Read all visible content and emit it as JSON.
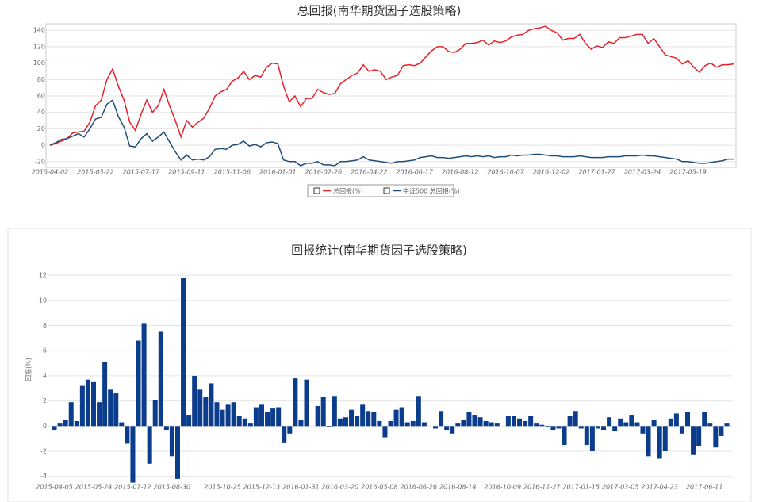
{
  "chart_data": [
    {
      "type": "line",
      "title": "总回报(南华期货因子选股策略)",
      "categories": [
        "2015-04-02",
        null,
        null,
        null,
        null,
        null,
        null,
        null,
        "2015-05-22",
        null,
        null,
        null,
        null,
        null,
        null,
        null,
        "2015-07-17",
        null,
        null,
        null,
        null,
        null,
        null,
        null,
        "2015-09-11",
        null,
        null,
        null,
        null,
        null,
        null,
        null,
        "2015-11-06",
        null,
        null,
        null,
        null,
        null,
        null,
        null,
        "2016-01-01",
        null,
        null,
        null,
        null,
        null,
        null,
        null,
        "2016-02-26",
        null,
        null,
        null,
        null,
        null,
        null,
        null,
        "2016-04-22",
        null,
        null,
        null,
        null,
        null,
        null,
        null,
        "2016-06-17",
        null,
        null,
        null,
        null,
        null,
        null,
        null,
        "2016-08-12",
        null,
        null,
        null,
        null,
        null,
        null,
        null,
        "2016-10-07",
        null,
        null,
        null,
        null,
        null,
        null,
        null,
        "2016-12-02",
        null,
        null,
        null,
        null,
        null,
        null,
        null,
        "2017-01-27",
        null,
        null,
        null,
        null,
        null,
        null,
        null,
        "2017-03-24",
        null,
        null,
        null,
        null,
        null,
        null,
        null,
        "2017-05-19",
        null,
        null,
        null,
        null,
        null,
        null,
        null,
        null
      ],
      "series": [
        {
          "name": "总回报(%)",
          "color": "#e8202a",
          "values": [
            0,
            2,
            5,
            8,
            15,
            16,
            17,
            28,
            48,
            55,
            80,
            93,
            72,
            55,
            28,
            18,
            38,
            55,
            40,
            48,
            68,
            48,
            30,
            10,
            30,
            22,
            28,
            33,
            45,
            60,
            65,
            68,
            78,
            82,
            90,
            80,
            85,
            83,
            95,
            100,
            99,
            72,
            53,
            60,
            47,
            57,
            57,
            68,
            64,
            62,
            63,
            75,
            80,
            85,
            88,
            98,
            90,
            92,
            90,
            80,
            83,
            85,
            97,
            98,
            97,
            100,
            108,
            115,
            120,
            120,
            114,
            113,
            117,
            124,
            124,
            125,
            128,
            122,
            127,
            125,
            127,
            132,
            134,
            135,
            140,
            142,
            143,
            145,
            140,
            137,
            128,
            130,
            130,
            135,
            124,
            117,
            121,
            119,
            126,
            124,
            131,
            131,
            133,
            135,
            135,
            124,
            130,
            120,
            110,
            108,
            106,
            99,
            103,
            95,
            89,
            97,
            100,
            95,
            98,
            98,
            99
          ]
        },
        {
          "name": "中证500 总回报(%)",
          "color": "#1f4e79",
          "values": [
            0,
            3,
            7,
            8,
            11,
            14,
            10,
            20,
            32,
            34,
            50,
            55,
            35,
            22,
            -1,
            -2,
            8,
            14,
            5,
            10,
            16,
            4,
            -8,
            -18,
            -12,
            -18,
            -17,
            -18,
            -14,
            -5,
            -4,
            -5,
            0,
            1,
            5,
            -1,
            1,
            -2,
            3,
            4,
            2,
            -18,
            -20,
            -20,
            -25,
            -22,
            -22,
            -20,
            -24,
            -24,
            -25,
            -20,
            -20,
            -19,
            -18,
            -14,
            -18,
            -19,
            -20,
            -21,
            -22,
            -20,
            -20,
            -19,
            -18,
            -15,
            -14,
            -13,
            -15,
            -15,
            -16,
            -15,
            -14,
            -13,
            -14,
            -13,
            -14,
            -13,
            -15,
            -14,
            -14,
            -12,
            -13,
            -12,
            -12,
            -11,
            -11,
            -12,
            -13,
            -13,
            -14,
            -14,
            -14,
            -13,
            -14,
            -15,
            -15,
            -15,
            -14,
            -14,
            -14,
            -13,
            -13,
            -13,
            -12,
            -13,
            -13,
            -14,
            -15,
            -16,
            -17,
            -20,
            -20,
            -21,
            -22,
            -22,
            -21,
            -20,
            -19,
            -17,
            -17
          ]
        }
      ],
      "ylim": [
        -26,
        146
      ],
      "yticks": [
        -20,
        0,
        20,
        40,
        60,
        80,
        100,
        120,
        140
      ],
      "grid": true,
      "legend": "bottom"
    },
    {
      "type": "bar",
      "title": "回报统计(南华期货因子选股策略)",
      "y_label": "回报(%)",
      "color": "#0b3d8c",
      "categories": [
        "2015-04-05",
        null,
        null,
        null,
        null,
        null,
        null,
        "2015-05-24",
        null,
        null,
        null,
        null,
        null,
        null,
        "2015-07-12",
        null,
        null,
        null,
        null,
        null,
        null,
        "2015-08-30",
        null,
        null,
        null,
        null,
        null,
        null,
        null,
        null,
        "2015-10-25",
        null,
        null,
        null,
        null,
        null,
        null,
        "2015-12-13",
        null,
        null,
        null,
        null,
        null,
        null,
        "2016-01-31",
        null,
        null,
        null,
        null,
        null,
        null,
        "2016-03-20",
        null,
        null,
        null,
        null,
        null,
        null,
        "2016-05-08",
        null,
        null,
        null,
        null,
        null,
        null,
        "2016-06-26",
        null,
        null,
        null,
        null,
        null,
        null,
        "2016-08-14",
        null,
        null,
        null,
        null,
        null,
        null,
        null,
        "2016-10-09",
        null,
        null,
        null,
        null,
        null,
        null,
        "2016-11-27",
        null,
        null,
        null,
        null,
        null,
        null,
        "2017-01-15",
        null,
        null,
        null,
        null,
        null,
        null,
        "2017-03-05",
        null,
        null,
        null,
        null,
        null,
        null,
        "2017-04-23",
        null,
        null,
        null,
        null,
        null,
        null,
        null,
        "2017-06-11",
        null,
        null,
        null,
        null
      ],
      "values": [
        -0.3,
        0.2,
        0.5,
        1.9,
        0.4,
        3.2,
        3.7,
        3.5,
        1.9,
        5.1,
        2.9,
        2.6,
        0.3,
        -1.4,
        -4.5,
        6.8,
        8.2,
        -3.0,
        2.1,
        7.5,
        -0.3,
        -2.4,
        -4.2,
        11.8,
        0.9,
        4.0,
        2.9,
        2.3,
        3.4,
        1.9,
        1.3,
        1.7,
        1.9,
        0.8,
        0.6,
        0.2,
        1.5,
        1.7,
        1.1,
        1.4,
        1.5,
        -1.3,
        -0.6,
        3.8,
        0.5,
        3.7,
        0,
        1.6,
        2.3,
        -0.1,
        2.4,
        0.6,
        0.7,
        1.3,
        0.8,
        1.7,
        1.2,
        1.1,
        0.4,
        -0.9,
        0.4,
        1.3,
        1.5,
        0.3,
        0.4,
        2.4,
        0.3,
        0,
        -0.2,
        1.2,
        -0.3,
        -0.6,
        0.2,
        0.5,
        1.1,
        0.9,
        0.7,
        0.4,
        0.3,
        0.2,
        0,
        0.8,
        0.8,
        0.6,
        0.4,
        0.8,
        0.2,
        0.1,
        -0.1,
        -0.3,
        -0.2,
        -1.5,
        0.8,
        1.2,
        -0.2,
        -1.5,
        -2.0,
        -0.2,
        -0.3,
        0.7,
        -0.4,
        0.6,
        0.3,
        0.9,
        0.3,
        -0.6,
        -2.4,
        0.5,
        -2.6,
        -2.0,
        0.6,
        1.0,
        -0.6,
        1.1,
        -2.3,
        -1.6,
        1.1,
        0.2,
        -1.7,
        -0.8,
        0.2
      ],
      "ylim": [
        -4.4,
        13.4
      ],
      "yticks": [
        -4,
        -2,
        0,
        2,
        4,
        6,
        8,
        10,
        12
      ],
      "grid": true
    }
  ]
}
